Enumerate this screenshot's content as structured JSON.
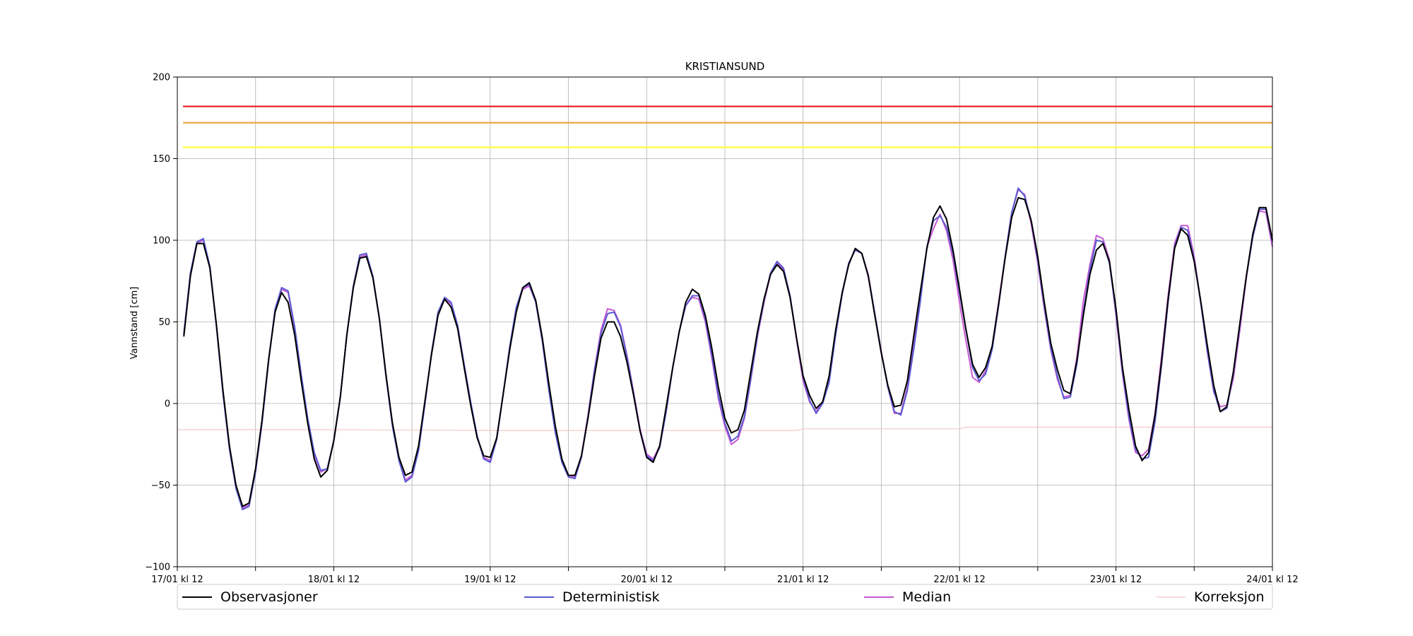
{
  "chart_data": {
    "type": "line",
    "title": "KRISTIANSUND",
    "xlabel": "",
    "ylabel": "Vannstand [cm]",
    "xlim": [
      0,
      168
    ],
    "ylim": [
      -100,
      200
    ],
    "yticks": [
      -100,
      -50,
      0,
      50,
      100,
      150,
      200
    ],
    "xtick_labels": [
      {
        "x": 0,
        "label": "17/01 kl 12"
      },
      {
        "x": 24,
        "label": "18/01 kl 12"
      },
      {
        "x": 48,
        "label": "19/01 kl 12"
      },
      {
        "x": 72,
        "label": "20/01 kl 12"
      },
      {
        "x": 96,
        "label": "21/01 kl 12"
      },
      {
        "x": 120,
        "label": "22/01 kl 12"
      },
      {
        "x": 144,
        "label": "23/01 kl 12"
      },
      {
        "x": 168,
        "label": "24/01 kl 12"
      }
    ],
    "xticks_minor": [
      12,
      36,
      60,
      84,
      108,
      132,
      156
    ],
    "grid": true,
    "legend_placement": "bottom",
    "thresholds": [
      {
        "value": 182,
        "color": "#e41a1c"
      },
      {
        "value": 172,
        "color": "#f0a030"
      },
      {
        "value": 157,
        "color": "#ffff33"
      }
    ],
    "series": [
      {
        "name": "Observasjoner",
        "color": "#000000",
        "x": [
          1,
          2,
          3,
          4,
          5,
          6,
          7,
          8,
          9,
          10,
          11,
          12,
          13,
          14,
          15,
          16,
          17,
          18,
          19,
          20,
          21,
          22,
          23,
          24,
          25,
          26,
          27,
          28,
          29,
          30,
          31,
          32,
          33,
          34,
          35,
          36,
          37,
          38,
          39,
          40,
          41,
          42,
          43,
          44,
          45,
          46,
          47,
          48,
          49,
          50,
          51,
          52,
          53,
          54,
          55,
          56,
          57,
          58,
          59,
          60,
          61,
          62,
          63,
          64,
          65,
          66,
          67,
          68,
          69,
          70,
          71,
          72,
          73,
          74,
          75,
          76,
          77,
          78,
          79,
          80,
          81,
          82,
          83,
          84,
          85,
          86,
          87,
          88,
          89,
          90,
          91,
          92,
          93,
          94,
          95,
          96,
          97,
          98,
          99,
          100,
          101,
          102,
          103,
          104,
          105,
          106,
          107,
          108,
          109,
          110,
          111,
          112,
          113,
          114,
          115,
          116,
          117,
          118,
          119,
          120,
          121,
          122,
          123,
          124,
          125,
          126,
          127,
          128,
          129,
          130,
          131,
          132,
          133,
          134,
          135,
          136,
          137,
          138,
          139,
          140,
          141,
          142,
          143,
          144,
          145,
          146,
          147,
          148,
          149,
          150,
          151,
          152,
          153,
          154,
          155,
          156,
          157,
          158,
          159,
          160,
          161,
          162,
          163,
          164,
          165,
          166,
          167,
          168
        ],
        "values": [
          41,
          78,
          98,
          98,
          83,
          48,
          8,
          -26,
          -50,
          -63,
          -61,
          -40,
          -10,
          27,
          56,
          68,
          62,
          42,
          14,
          -12,
          -34,
          -45,
          -41,
          -23,
          4,
          42,
          71,
          89,
          90,
          77,
          52,
          18,
          -12,
          -33,
          -44,
          -42,
          -26,
          2,
          30,
          54,
          64,
          59,
          46,
          22,
          -1,
          -21,
          -32,
          -33,
          -21,
          6,
          33,
          56,
          71,
          74,
          63,
          40,
          12,
          -14,
          -34,
          -44,
          -44,
          -32,
          -9,
          17,
          40,
          50,
          50,
          41,
          25,
          5,
          -17,
          -33,
          -36,
          -26,
          -2,
          22,
          44,
          62,
          70,
          67,
          54,
          34,
          10,
          -9,
          -18,
          -16,
          -4,
          20,
          44,
          64,
          79,
          85,
          81,
          65,
          40,
          17,
          5,
          -3,
          1,
          17,
          45,
          68,
          85,
          95,
          92,
          78,
          54,
          31,
          11,
          -2,
          -1,
          14,
          42,
          69,
          95,
          114,
          121,
          113,
          94,
          70,
          45,
          24,
          16,
          22,
          35,
          61,
          89,
          114,
          126,
          125,
          112,
          90,
          62,
          37,
          21,
          8,
          6,
          26,
          54,
          79,
          94,
          98,
          87,
          58,
          22,
          -4,
          -26,
          -35,
          -30,
          -7,
          26,
          64,
          95,
          107,
          103,
          87,
          63,
          36,
          11,
          -5,
          -2,
          19,
          49,
          78,
          104,
          120,
          120,
          100
        ]
      },
      {
        "name": "Deterministisk",
        "color": "#5a5ad2",
        "x": [
          1,
          2,
          3,
          4,
          5,
          6,
          7,
          8,
          9,
          10,
          11,
          12,
          13,
          14,
          15,
          16,
          17,
          18,
          19,
          20,
          21,
          22,
          23,
          24,
          25,
          26,
          27,
          28,
          29,
          30,
          31,
          32,
          33,
          34,
          35,
          36,
          37,
          38,
          39,
          40,
          41,
          42,
          43,
          44,
          45,
          46,
          47,
          48,
          49,
          50,
          51,
          52,
          53,
          54,
          55,
          56,
          57,
          58,
          59,
          60,
          61,
          62,
          63,
          64,
          65,
          66,
          67,
          68,
          69,
          70,
          71,
          72,
          73,
          74,
          75,
          76,
          77,
          78,
          79,
          80,
          81,
          82,
          83,
          84,
          85,
          86,
          87,
          88,
          89,
          90,
          91,
          92,
          93,
          94,
          95,
          96,
          97,
          98,
          99,
          100,
          101,
          102,
          103,
          104,
          105,
          106,
          107,
          108,
          109,
          110,
          111,
          112,
          113,
          114,
          115,
          116,
          117,
          118,
          119,
          120,
          121,
          122,
          123,
          124,
          125,
          126,
          127,
          128,
          129,
          130,
          131,
          132,
          133,
          134,
          135,
          136,
          137,
          138,
          139,
          140,
          141,
          142,
          143,
          144,
          145,
          146,
          147,
          148,
          149,
          150,
          151,
          152,
          153,
          154,
          155,
          156,
          157,
          158,
          159,
          160,
          161,
          162,
          163,
          164,
          165,
          166,
          167,
          168
        ],
        "values": [
          43,
          80,
          99,
          101,
          84,
          47,
          6,
          -28,
          -52,
          -65,
          -63,
          -42,
          -12,
          26,
          58,
          71,
          69,
          47,
          18,
          -9,
          -30,
          -41,
          -40,
          -23,
          4,
          42,
          72,
          91,
          92,
          78,
          52,
          17,
          -14,
          -35,
          -48,
          -45,
          -29,
          0,
          31,
          56,
          65,
          62,
          48,
          24,
          1,
          -20,
          -34,
          -36,
          -22,
          6,
          35,
          59,
          71,
          73,
          62,
          38,
          8,
          -18,
          -36,
          -45,
          -46,
          -33,
          -8,
          20,
          43,
          55,
          56,
          47,
          28,
          6,
          -17,
          -32,
          -35,
          -27,
          -5,
          22,
          44,
          60,
          66,
          66,
          52,
          30,
          5,
          -12,
          -23,
          -20,
          -8,
          16,
          42,
          63,
          80,
          87,
          83,
          66,
          40,
          16,
          2,
          -6,
          0,
          13,
          42,
          67,
          86,
          94,
          92,
          78,
          55,
          31,
          10,
          -5,
          -7,
          8,
          34,
          63,
          96,
          112,
          115,
          108,
          92,
          68,
          45,
          22,
          14,
          18,
          33,
          60,
          90,
          117,
          132,
          127,
          112,
          88,
          60,
          34,
          17,
          3,
          4,
          24,
          56,
          82,
          100,
          99,
          86,
          56,
          20,
          -8,
          -28,
          -34,
          -33,
          -11,
          24,
          62,
          96,
          108,
          106,
          88,
          62,
          33,
          8,
          -5,
          -3,
          18,
          48,
          78,
          102,
          119,
          119,
          99
        ]
      },
      {
        "name": "Median",
        "color": "#c85ad2",
        "x": [
          1,
          2,
          3,
          4,
          5,
          6,
          7,
          8,
          9,
          10,
          11,
          12,
          13,
          14,
          15,
          16,
          17,
          18,
          19,
          20,
          21,
          22,
          23,
          24,
          25,
          26,
          27,
          28,
          29,
          30,
          31,
          32,
          33,
          34,
          35,
          36,
          37,
          38,
          39,
          40,
          41,
          42,
          43,
          44,
          45,
          46,
          47,
          48,
          49,
          50,
          51,
          52,
          53,
          54,
          55,
          56,
          57,
          58,
          59,
          60,
          61,
          62,
          63,
          64,
          65,
          66,
          67,
          68,
          69,
          70,
          71,
          72,
          73,
          74,
          75,
          76,
          77,
          78,
          79,
          80,
          81,
          82,
          83,
          84,
          85,
          86,
          87,
          88,
          89,
          90,
          91,
          92,
          93,
          94,
          95,
          96,
          97,
          98,
          99,
          100,
          101,
          102,
          103,
          104,
          105,
          106,
          107,
          108,
          109,
          110,
          111,
          112,
          113,
          114,
          115,
          116,
          117,
          118,
          119,
          120,
          121,
          122,
          123,
          124,
          125,
          126,
          127,
          128,
          129,
          130,
          131,
          132,
          133,
          134,
          135,
          136,
          137,
          138,
          139,
          140,
          141,
          142,
          143,
          144,
          145,
          146,
          147,
          148,
          149,
          150,
          151,
          152,
          153,
          154,
          155,
          156,
          157,
          158,
          159,
          160,
          161,
          162,
          163,
          164,
          165,
          166,
          167,
          168
        ],
        "values": [
          42,
          79,
          98,
          100,
          83,
          47,
          7,
          -27,
          -51,
          -64,
          -62,
          -41,
          -11,
          26,
          57,
          70,
          68,
          46,
          17,
          -10,
          -31,
          -42,
          -40,
          -23,
          4,
          42,
          71,
          90,
          91,
          77,
          52,
          18,
          -13,
          -34,
          -47,
          -44,
          -28,
          1,
          31,
          55,
          64,
          61,
          47,
          23,
          0,
          -20,
          -33,
          -35,
          -21,
          6,
          34,
          58,
          70,
          72,
          62,
          38,
          9,
          -16,
          -35,
          -44,
          -45,
          -32,
          -7,
          21,
          45,
          58,
          57,
          48,
          29,
          7,
          -16,
          -31,
          -34,
          -26,
          -4,
          22,
          44,
          60,
          65,
          64,
          50,
          28,
          3,
          -14,
          -25,
          -22,
          -9,
          15,
          41,
          62,
          79,
          86,
          82,
          65,
          39,
          14,
          1,
          -5,
          1,
          15,
          44,
          68,
          86,
          94,
          92,
          79,
          55,
          32,
          10,
          -6,
          -6,
          10,
          37,
          67,
          96,
          107,
          116,
          106,
          88,
          62,
          38,
          16,
          13,
          20,
          35,
          62,
          90,
          117,
          131,
          128,
          110,
          86,
          58,
          33,
          15,
          4,
          5,
          28,
          63,
          85,
          103,
          101,
          88,
          54,
          18,
          -10,
          -30,
          -32,
          -28,
          -6,
          29,
          66,
          98,
          109,
          109,
          90,
          62,
          32,
          7,
          -2,
          -1,
          15,
          45,
          77,
          103,
          118,
          117,
          96
        ]
      },
      {
        "name": "Korreksjon",
        "color": "#f4c8c8",
        "x": [
          0,
          24,
          48,
          72,
          95,
          96,
          120,
          121,
          144,
          168
        ],
        "values": [
          -16,
          -16,
          -16.5,
          -16.5,
          -16.5,
          -15.5,
          -15.5,
          -14.5,
          -14.5,
          -14.5
        ]
      }
    ]
  }
}
